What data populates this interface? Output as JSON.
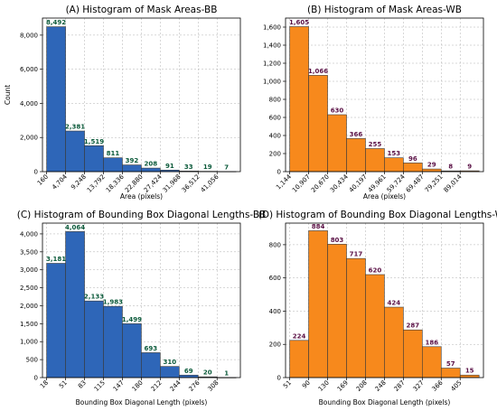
{
  "chart_data": [
    {
      "type": "bar",
      "title": "(A) Histogram of Mask Areas-BB",
      "xlabel": "Area (pixels)",
      "ylabel": "Count",
      "ylim": [
        0,
        9000
      ],
      "yticks": [
        "0",
        "2,000",
        "4,000",
        "6,000",
        "8,000"
      ],
      "ytick_values": [
        0,
        2000,
        4000,
        6000,
        8000
      ],
      "bin_edges": [
        "160",
        "4,704",
        "9,248",
        "13,792",
        "18,336",
        "22,880",
        "27,424",
        "31,968",
        "36,512",
        "41,056"
      ],
      "values": [
        8492,
        2381,
        1519,
        811,
        392,
        208,
        91,
        33,
        19,
        7
      ],
      "value_labels": [
        "8,492",
        "2,381",
        "1,519",
        "811",
        "392",
        "208",
        "91",
        "33",
        "19",
        "7"
      ],
      "bar_color": "#2e66b8",
      "label_color": "#0b5a3a",
      "grid": true
    },
    {
      "type": "bar",
      "title": "(B) Histogram of Mask Areas-WB",
      "xlabel": "Area (pixels)",
      "ylabel": "",
      "ylim": [
        0,
        1700
      ],
      "yticks": [
        "0",
        "200",
        "400",
        "600",
        "800",
        "1,000",
        "1,200",
        "1,400",
        "1,600"
      ],
      "ytick_values": [
        0,
        200,
        400,
        600,
        800,
        1000,
        1200,
        1400,
        1600
      ],
      "bin_edges": [
        "1,144",
        "10,907",
        "20,670",
        "30,434",
        "40,197",
        "49,961",
        "59,724",
        "69,487",
        "79,251",
        "89,014"
      ],
      "values": [
        1605,
        1066,
        630,
        366,
        255,
        153,
        96,
        29,
        8,
        9
      ],
      "value_labels": [
        "1,605",
        "1,066",
        "630",
        "366",
        "255",
        "153",
        "96",
        "29",
        "8",
        "9"
      ],
      "bar_color": "#f7891c",
      "label_color": "#5a1045",
      "grid": true
    },
    {
      "type": "bar",
      "title": "(C) Histogram of Bounding Box Diagonal Lengths-BB",
      "xlabel": "Bounding Box Diagonal Length (pixels)",
      "ylabel": "",
      "ylim": [
        0,
        4300
      ],
      "yticks": [
        "0",
        "500",
        "1,000",
        "1,500",
        "2,000",
        "2,500",
        "3,000",
        "3,500",
        "4,000"
      ],
      "ytick_values": [
        0,
        500,
        1000,
        1500,
        2000,
        2500,
        3000,
        3500,
        4000
      ],
      "bin_edges": [
        "18",
        "51",
        "83",
        "115",
        "147",
        "180",
        "212",
        "244",
        "276",
        "308"
      ],
      "values": [
        3181,
        4064,
        2133,
        1983,
        1499,
        693,
        310,
        69,
        20,
        1
      ],
      "value_labels": [
        "3,181",
        "4,064",
        "2,133",
        "1,983",
        "1,499",
        "693",
        "310",
        "69",
        "20",
        "1"
      ],
      "bar_color": "#2e66b8",
      "label_color": "#0b5a3a",
      "grid": true
    },
    {
      "type": "bar",
      "title": "(D) Histogram of Bounding Box Diagonal Lengths-WB",
      "xlabel": "Bounding Box Diagonal Length (pixels)",
      "ylabel": "",
      "ylim": [
        0,
        930
      ],
      "yticks": [
        "0",
        "200",
        "400",
        "600",
        "800"
      ],
      "ytick_values": [
        0,
        200,
        400,
        600,
        800
      ],
      "bin_edges": [
        "51",
        "90",
        "130",
        "169",
        "208",
        "248",
        "287",
        "327",
        "366",
        "405"
      ],
      "values": [
        224,
        884,
        803,
        717,
        620,
        424,
        287,
        186,
        57,
        15
      ],
      "value_labels": [
        "224",
        "884",
        "803",
        "717",
        "620",
        "424",
        "287",
        "186",
        "57",
        "15"
      ],
      "bar_color": "#f7891c",
      "label_color": "#5a1045",
      "grid": true
    }
  ]
}
